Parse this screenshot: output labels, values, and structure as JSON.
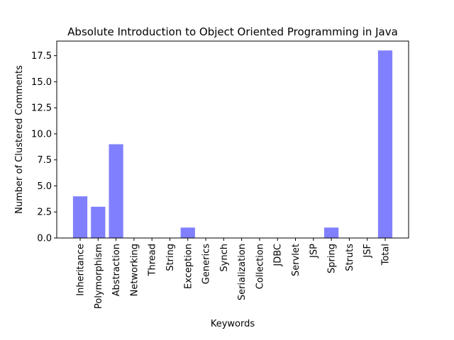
{
  "chart_data": {
    "type": "bar",
    "title": "Absolute Introduction to Object Oriented Programming in Java",
    "xlabel": "Keywords",
    "ylabel": "Number of Clustered Comments",
    "categories": [
      "Inheritance",
      "Polymorphism",
      "Abstraction",
      "Networking",
      "Thread",
      "String",
      "Exception",
      "Generics",
      "Synch",
      "Serialization",
      "Collection",
      "JDBC",
      "Servlet",
      "JSP",
      "Spring",
      "Struts",
      "JSF",
      "Total"
    ],
    "values": [
      4,
      3,
      9,
      0,
      0,
      0,
      1,
      0,
      0,
      0,
      0,
      0,
      0,
      0,
      1,
      0,
      0,
      18
    ],
    "ylim": [
      0,
      18.9
    ],
    "yticks": [
      0.0,
      2.5,
      5.0,
      7.5,
      10.0,
      12.5,
      15.0,
      17.5
    ],
    "ytick_labels": [
      "0.0",
      "2.5",
      "5.0",
      "7.5",
      "10.0",
      "12.5",
      "15.0",
      "17.5"
    ],
    "bar_color": "#8080ff",
    "grid": false,
    "legend": "none"
  }
}
